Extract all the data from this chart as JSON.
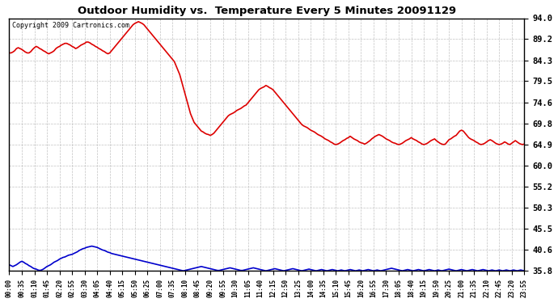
{
  "title": "Outdoor Humidity vs.  Temperature Every 5 Minutes 20091129",
  "copyright": "Copyright 2009 Cartronics.com",
  "yticks": [
    94.0,
    89.2,
    84.3,
    79.5,
    74.6,
    69.8,
    64.9,
    60.0,
    55.2,
    50.3,
    45.5,
    40.6,
    35.8
  ],
  "ymin": 35.8,
  "ymax": 94.0,
  "bg_color": "#ffffff",
  "grid_color": "#bbbbbb",
  "red_color": "#dd0000",
  "blue_color": "#0000cc",
  "xtick_labels": [
    "00:00",
    "00:35",
    "01:10",
    "01:45",
    "02:20",
    "02:55",
    "03:30",
    "04:05",
    "04:40",
    "05:15",
    "05:50",
    "06:25",
    "07:00",
    "07:35",
    "08:10",
    "08:45",
    "09:20",
    "09:55",
    "10:30",
    "11:05",
    "11:40",
    "12:15",
    "12:50",
    "13:25",
    "14:00",
    "14:35",
    "15:10",
    "15:45",
    "16:20",
    "16:55",
    "17:30",
    "18:05",
    "18:40",
    "19:15",
    "19:50",
    "20:25",
    "21:00",
    "21:35",
    "22:10",
    "22:45",
    "23:20",
    "23:55"
  ],
  "red_y": [
    86.0,
    86.0,
    86.2,
    86.5,
    87.0,
    87.2,
    87.0,
    86.8,
    86.5,
    86.2,
    86.0,
    86.0,
    86.3,
    86.8,
    87.2,
    87.5,
    87.3,
    87.0,
    86.8,
    86.5,
    86.3,
    86.0,
    85.8,
    86.0,
    86.2,
    86.5,
    87.0,
    87.3,
    87.5,
    87.8,
    88.0,
    88.2,
    88.2,
    88.0,
    87.8,
    87.5,
    87.3,
    87.0,
    87.2,
    87.5,
    87.8,
    88.0,
    88.2,
    88.5,
    88.5,
    88.3,
    88.0,
    87.8,
    87.5,
    87.3,
    87.0,
    86.8,
    86.5,
    86.3,
    86.0,
    85.8,
    86.0,
    86.5,
    87.0,
    87.5,
    88.0,
    88.5,
    89.0,
    89.5,
    90.0,
    90.5,
    91.0,
    91.5,
    92.0,
    92.5,
    92.8,
    93.0,
    93.2,
    93.0,
    92.8,
    92.5,
    92.0,
    91.5,
    91.0,
    90.5,
    90.0,
    89.5,
    89.0,
    88.5,
    88.0,
    87.5,
    87.0,
    86.5,
    86.0,
    85.5,
    85.0,
    84.5,
    84.0,
    83.0,
    82.0,
    81.0,
    79.5,
    78.0,
    76.5,
    75.0,
    73.5,
    72.0,
    71.0,
    70.0,
    69.5,
    69.0,
    68.5,
    68.0,
    67.8,
    67.5,
    67.3,
    67.2,
    67.0,
    67.2,
    67.5,
    68.0,
    68.5,
    69.0,
    69.5,
    70.0,
    70.5,
    71.0,
    71.5,
    71.8,
    72.0,
    72.2,
    72.5,
    72.8,
    73.0,
    73.2,
    73.5,
    73.8,
    74.0,
    74.5,
    75.0,
    75.5,
    76.0,
    76.5,
    77.0,
    77.5,
    77.8,
    78.0,
    78.2,
    78.5,
    78.3,
    78.0,
    77.8,
    77.5,
    77.0,
    76.5,
    76.0,
    75.5,
    75.0,
    74.5,
    74.0,
    73.5,
    73.0,
    72.5,
    72.0,
    71.5,
    71.0,
    70.5,
    70.0,
    69.5,
    69.2,
    69.0,
    68.8,
    68.5,
    68.2,
    68.0,
    67.8,
    67.5,
    67.2,
    67.0,
    66.8,
    66.5,
    66.2,
    66.0,
    65.8,
    65.5,
    65.3,
    65.0,
    64.9,
    65.0,
    65.2,
    65.5,
    65.8,
    66.0,
    66.3,
    66.5,
    66.8,
    66.5,
    66.2,
    66.0,
    65.8,
    65.5,
    65.3,
    65.2,
    65.0,
    65.2,
    65.5,
    65.8,
    66.2,
    66.5,
    66.8,
    67.0,
    67.2,
    67.0,
    66.8,
    66.5,
    66.2,
    66.0,
    65.8,
    65.5,
    65.3,
    65.2,
    65.0,
    64.9,
    65.0,
    65.2,
    65.5,
    65.8,
    66.0,
    66.2,
    66.5,
    66.2,
    66.0,
    65.8,
    65.5,
    65.3,
    65.0,
    64.9,
    65.0,
    65.2,
    65.5,
    65.8,
    66.0,
    66.2,
    65.8,
    65.5,
    65.2,
    65.0,
    64.9,
    65.0,
    65.5,
    66.0,
    66.2,
    66.5,
    66.8,
    67.0,
    67.5,
    68.0,
    68.2,
    68.0,
    67.5,
    67.0,
    66.5,
    66.2,
    66.0,
    65.8,
    65.5,
    65.3,
    65.0,
    64.9,
    65.0,
    65.2,
    65.5,
    65.8,
    66.0,
    65.8,
    65.5,
    65.2,
    65.0,
    64.9,
    65.0,
    65.2,
    65.5,
    65.3,
    65.0,
    64.9,
    65.2,
    65.5,
    65.8,
    65.5,
    65.2,
    65.0,
    64.9,
    65.0
  ],
  "blue_y": [
    37.2,
    37.0,
    36.8,
    37.0,
    37.2,
    37.5,
    37.8,
    38.0,
    37.8,
    37.5,
    37.3,
    37.0,
    36.8,
    36.5,
    36.3,
    36.2,
    36.0,
    35.9,
    36.0,
    36.2,
    36.5,
    36.8,
    37.0,
    37.2,
    37.5,
    37.8,
    38.0,
    38.2,
    38.5,
    38.7,
    38.9,
    39.0,
    39.2,
    39.4,
    39.5,
    39.6,
    39.8,
    40.0,
    40.2,
    40.5,
    40.7,
    40.9,
    41.0,
    41.2,
    41.3,
    41.4,
    41.5,
    41.4,
    41.3,
    41.2,
    41.0,
    40.8,
    40.6,
    40.5,
    40.3,
    40.1,
    40.0,
    39.8,
    39.7,
    39.6,
    39.5,
    39.4,
    39.3,
    39.2,
    39.1,
    39.0,
    38.9,
    38.8,
    38.7,
    38.6,
    38.5,
    38.4,
    38.3,
    38.2,
    38.1,
    38.0,
    37.9,
    37.8,
    37.7,
    37.6,
    37.5,
    37.4,
    37.3,
    37.2,
    37.1,
    37.0,
    36.9,
    36.8,
    36.7,
    36.6,
    36.5,
    36.4,
    36.3,
    36.2,
    36.1,
    36.0,
    35.9,
    35.8,
    35.9,
    36.0,
    36.1,
    36.2,
    36.3,
    36.4,
    36.5,
    36.6,
    36.7,
    36.8,
    36.7,
    36.6,
    36.5,
    36.4,
    36.3,
    36.2,
    36.1,
    36.0,
    35.9,
    35.9,
    36.0,
    36.1,
    36.2,
    36.3,
    36.4,
    36.5,
    36.4,
    36.3,
    36.2,
    36.1,
    36.0,
    35.9,
    35.9,
    36.0,
    36.1,
    36.2,
    36.3,
    36.4,
    36.5,
    36.4,
    36.3,
    36.2,
    36.1,
    36.0,
    35.9,
    35.8,
    35.9,
    36.0,
    36.1,
    36.2,
    36.3,
    36.2,
    36.1,
    36.0,
    35.9,
    35.8,
    35.9,
    36.0,
    36.1,
    36.2,
    36.3,
    36.2,
    36.1,
    36.0,
    35.9,
    35.8,
    35.9,
    36.0,
    36.1,
    36.2,
    36.1,
    36.0,
    35.9,
    35.8,
    35.9,
    36.0,
    36.1,
    36.0,
    35.9,
    35.8,
    35.9,
    36.0,
    36.1,
    36.0,
    35.9,
    35.8,
    35.9,
    36.0,
    35.9,
    35.8,
    35.9,
    36.0,
    36.1,
    36.0,
    35.9,
    35.8,
    35.9,
    36.0,
    35.9,
    35.8,
    35.9,
    36.0,
    36.1,
    36.0,
    35.9,
    35.8,
    35.9,
    36.0,
    35.9,
    35.8,
    35.9,
    36.0,
    36.1,
    36.2,
    36.3,
    36.4,
    36.3,
    36.2,
    36.1,
    36.0,
    35.9,
    35.8,
    35.9,
    36.0,
    36.1,
    36.0,
    35.9,
    35.8,
    35.9,
    36.0,
    36.1,
    36.0,
    35.9,
    35.8,
    35.9,
    36.0,
    36.1,
    36.0,
    35.9,
    35.8,
    35.9,
    36.0,
    35.9,
    35.8,
    35.9,
    36.0,
    36.1,
    36.2,
    36.1,
    36.0,
    35.9,
    35.8,
    35.9,
    36.0,
    36.1,
    36.0,
    35.9,
    35.8,
    35.9,
    36.0,
    36.1,
    36.0,
    35.9,
    35.8,
    35.9,
    36.0,
    36.1,
    36.0,
    35.9,
    35.8,
    35.9,
    36.0,
    35.9,
    35.8,
    35.9,
    36.0,
    35.9,
    35.8,
    35.9,
    36.0,
    35.9,
    35.8,
    35.9,
    36.0,
    35.9,
    35.8,
    35.9,
    36.0,
    35.9,
    35.8
  ]
}
